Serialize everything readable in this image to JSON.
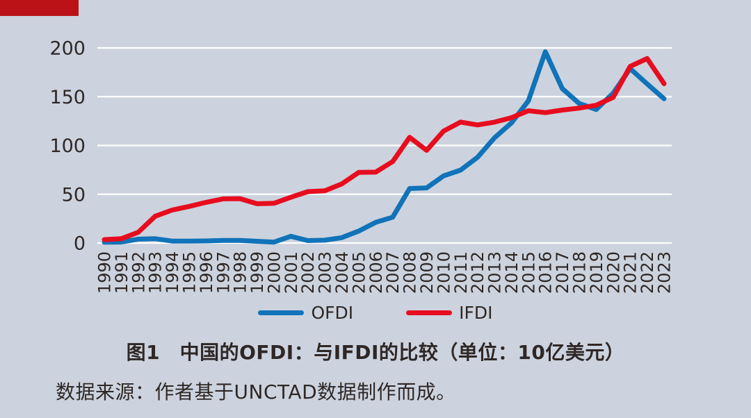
{
  "page": {
    "background_color": "#ccd3de",
    "accent_bar_color": "#bb1217",
    "text_color": "#2f2725",
    "gridline_color": "#ffffff"
  },
  "chart_data": {
    "type": "line",
    "title": "图1　中国的OFDI：与IFDI的比较（单位：10亿美元）",
    "source_note": "数据来源：作者基于UNCTAD数据制作而成。",
    "unit": "10亿美元",
    "xlabel": "",
    "ylabel": "",
    "ylim": [
      0,
      200
    ],
    "yticks": [
      0,
      50,
      100,
      150,
      200
    ],
    "grid": "horizontal-only",
    "legend_position": "bottom",
    "x": [
      1990,
      1991,
      1992,
      1993,
      1994,
      1995,
      1996,
      1997,
      1998,
      1999,
      2000,
      2001,
      2002,
      2003,
      2004,
      2005,
      2006,
      2007,
      2008,
      2009,
      2010,
      2011,
      2012,
      2013,
      2014,
      2015,
      2016,
      2017,
      2018,
      2019,
      2020,
      2021,
      2022,
      2023
    ],
    "series": [
      {
        "name": "OFDI",
        "color": "#1173b9",
        "values": [
          0.8,
          1.0,
          4.0,
          4.4,
          2.0,
          2.0,
          2.1,
          2.6,
          2.6,
          1.8,
          0.9,
          6.9,
          2.5,
          2.9,
          5.5,
          12.3,
          21.2,
          26.5,
          55.9,
          56.5,
          68.8,
          74.7,
          87.8,
          107.8,
          123.1,
          145.7,
          196.1,
          158.3,
          143.0,
          136.9,
          153.7,
          178.8,
          163.1,
          147.9
        ]
      },
      {
        "name": "IFDI",
        "color": "#e60d1f",
        "values": [
          3.5,
          4.4,
          11.0,
          27.5,
          33.8,
          37.5,
          41.7,
          45.3,
          45.5,
          40.3,
          40.7,
          46.9,
          52.7,
          53.5,
          60.6,
          72.4,
          72.7,
          83.5,
          108.3,
          95.0,
          114.7,
          124.0,
          121.1,
          123.9,
          128.5,
          135.6,
          133.7,
          136.3,
          138.3,
          141.2,
          149.3,
          181.0,
          189.1,
          163.3
        ]
      }
    ]
  }
}
